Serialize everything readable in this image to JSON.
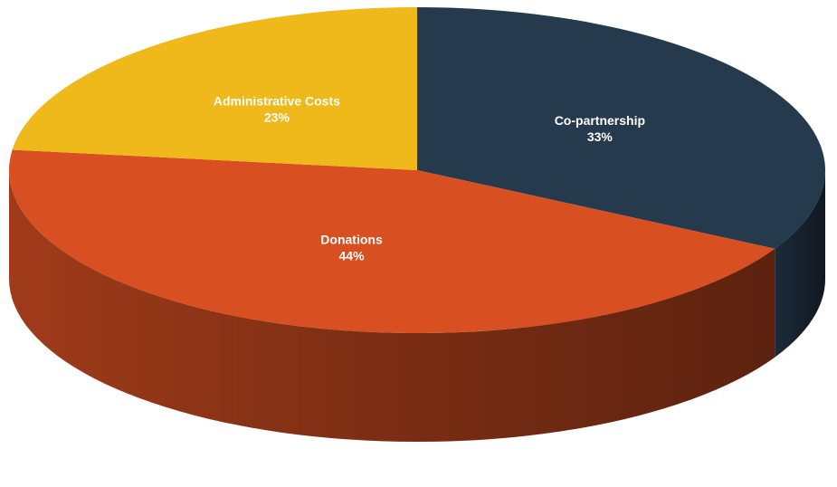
{
  "chart_data": {
    "type": "pie",
    "title": "",
    "slices": [
      {
        "label": "Co-partnership",
        "value": 33,
        "value_label": "33%",
        "color": "#263a4e"
      },
      {
        "label": "Donations",
        "value": 44,
        "value_label": "44%",
        "color": "#d84f22"
      },
      {
        "label": "Administrative Costs",
        "value": 23,
        "value_label": "23%",
        "color": "#efb81b"
      }
    ],
    "legend": "none",
    "style": "3d"
  }
}
